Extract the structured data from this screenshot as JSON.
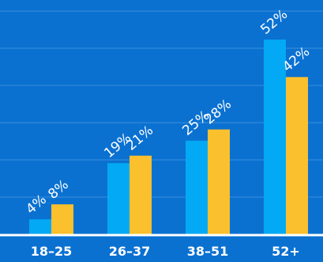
{
  "chart_data": {
    "type": "bar",
    "title": "",
    "xlabel": "",
    "ylabel": "",
    "categories": [
      "18–25",
      "26–37",
      "38–51",
      "52+"
    ],
    "series": [
      {
        "values": [
          4,
          19,
          25,
          52
        ],
        "color": "#03a9f4",
        "labels": [
          "4%",
          "19%",
          "25%",
          "52%"
        ]
      },
      {
        "values": [
          8,
          21,
          28,
          42
        ],
        "color": "#fbc02d",
        "labels": [
          "8%",
          "21%",
          "28%",
          "42%"
        ]
      }
    ],
    "ylim": [
      0,
      60
    ],
    "grid": true,
    "background": "#0a71d1"
  }
}
